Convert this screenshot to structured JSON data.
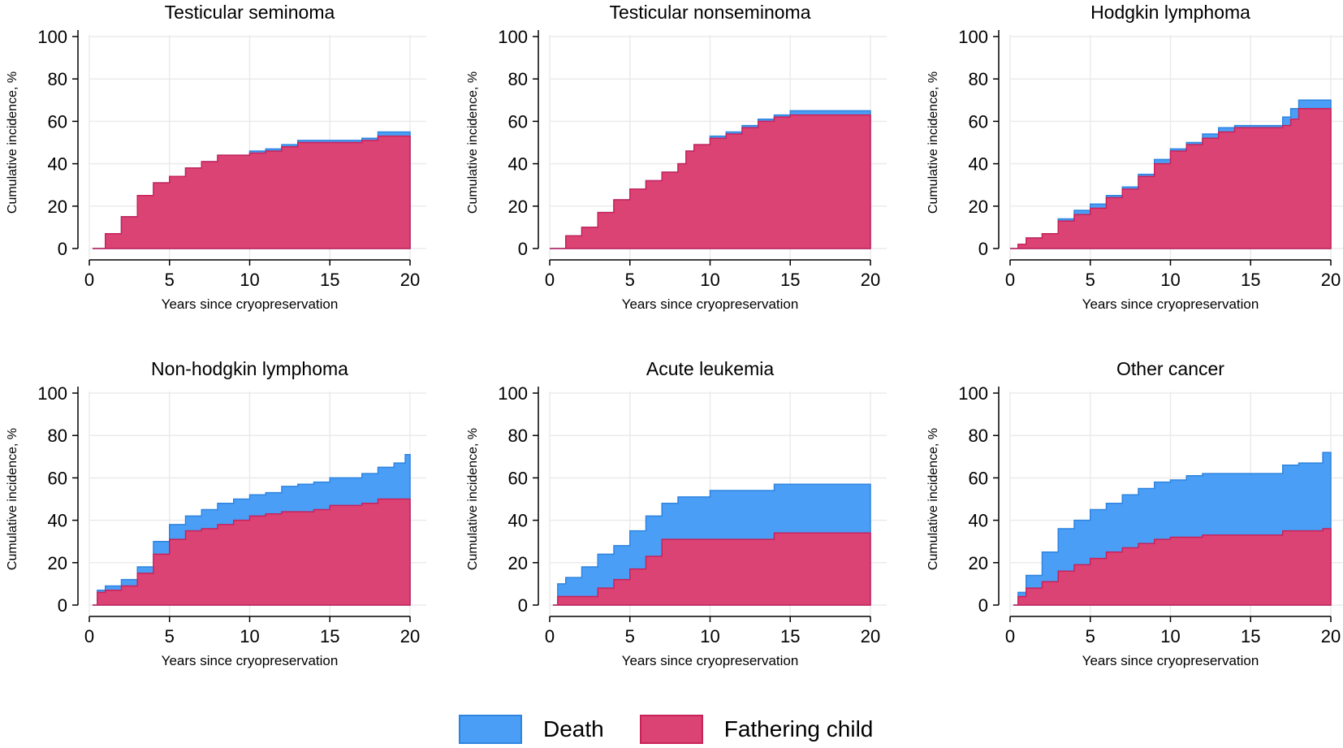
{
  "colors": {
    "death_fill": "#4a9ef5",
    "death_edge": "#2e84e0",
    "father_fill": "#dc4375",
    "father_edge": "#c8225a",
    "grid": "#ebebeb"
  },
  "legend": {
    "death_label": "Death",
    "father_label": "Fathering child"
  },
  "chart_data": [
    {
      "type": "area",
      "title": "Testicular seminoma",
      "xlabel": "Years since cryopreservation",
      "ylabel": "Cumulative incidence, %",
      "xlim": [
        0,
        20
      ],
      "ylim": [
        0,
        100
      ],
      "xticks": [
        0,
        5,
        10,
        15,
        20
      ],
      "yticks": [
        0,
        20,
        40,
        60,
        80,
        100
      ],
      "series": [
        {
          "name": "Death",
          "x": [
            0.2,
            1,
            2,
            3,
            4,
            5,
            6,
            7,
            8,
            9,
            10,
            11,
            12,
            13,
            15,
            17,
            18,
            20
          ],
          "y": [
            0,
            7,
            15,
            25,
            31,
            34,
            38,
            41,
            44,
            44,
            46,
            47,
            49,
            51,
            51,
            52,
            55,
            55
          ]
        },
        {
          "name": "Fathering child",
          "x": [
            0.2,
            1,
            2,
            3,
            4,
            5,
            6,
            7,
            8,
            9,
            10,
            11,
            12,
            13,
            15,
            17,
            18,
            20
          ],
          "y": [
            0,
            7,
            15,
            25,
            31,
            34,
            38,
            41,
            44,
            44,
            45,
            46,
            48,
            50,
            50,
            51,
            53,
            53
          ]
        }
      ]
    },
    {
      "type": "area",
      "title": "Testicular nonseminoma",
      "xlabel": "Years since cryopreservation",
      "ylabel": "Cumulative incidence, %",
      "xlim": [
        0,
        20
      ],
      "ylim": [
        0,
        100
      ],
      "xticks": [
        0,
        5,
        10,
        15,
        20
      ],
      "yticks": [
        0,
        20,
        40,
        60,
        80,
        100
      ],
      "series": [
        {
          "name": "Death",
          "x": [
            0,
            1,
            2,
            3,
            4,
            5,
            6,
            7,
            8,
            8.5,
            9,
            10,
            11,
            12,
            13,
            14,
            15,
            20
          ],
          "y": [
            0,
            6,
            10,
            17,
            23,
            28,
            32,
            36,
            40,
            46,
            49,
            53,
            55,
            58,
            61,
            63,
            65,
            65
          ]
        },
        {
          "name": "Fathering child",
          "x": [
            0,
            1,
            2,
            3,
            4,
            5,
            6,
            7,
            8,
            8.5,
            9,
            10,
            11,
            12,
            13,
            14,
            15,
            20
          ],
          "y": [
            0,
            6,
            10,
            17,
            23,
            28,
            32,
            36,
            40,
            46,
            49,
            52,
            54,
            57,
            60,
            62,
            63,
            63
          ]
        }
      ]
    },
    {
      "type": "area",
      "title": "Hodgkin lymphoma",
      "xlabel": "Years since cryopreservation",
      "ylabel": "Cumulative incidence, %",
      "xlim": [
        0,
        20
      ],
      "ylim": [
        0,
        100
      ],
      "xticks": [
        0,
        5,
        10,
        15,
        20
      ],
      "yticks": [
        0,
        20,
        40,
        60,
        80,
        100
      ],
      "series": [
        {
          "name": "Death",
          "x": [
            0,
            0.5,
            1,
            2,
            3,
            4,
            5,
            6,
            7,
            8,
            9,
            10,
            11,
            12,
            13,
            14,
            15,
            16,
            17,
            17.5,
            18,
            20
          ],
          "y": [
            0,
            2,
            5,
            7,
            14,
            18,
            21,
            25,
            29,
            35,
            42,
            47,
            50,
            54,
            57,
            58,
            58,
            58,
            62,
            66,
            70,
            70
          ]
        },
        {
          "name": "Fathering child",
          "x": [
            0,
            0.5,
            1,
            2,
            3,
            4,
            5,
            6,
            7,
            8,
            9,
            10,
            11,
            12,
            13,
            14,
            15,
            16,
            17,
            17.5,
            18,
            20
          ],
          "y": [
            0,
            2,
            5,
            7,
            13,
            16,
            19,
            24,
            28,
            34,
            40,
            46,
            49,
            52,
            55,
            57,
            57,
            57,
            58,
            61,
            66,
            66
          ]
        }
      ]
    },
    {
      "type": "area",
      "title": "Non-hodgkin lymphoma",
      "xlabel": "Years since cryopreservation",
      "ylabel": "Cumulative incidence, %",
      "xlim": [
        0,
        20
      ],
      "ylim": [
        0,
        100
      ],
      "xticks": [
        0,
        5,
        10,
        15,
        20
      ],
      "yticks": [
        0,
        20,
        40,
        60,
        80,
        100
      ],
      "series": [
        {
          "name": "Death",
          "x": [
            0.2,
            0.5,
            1,
            2,
            3,
            4,
            5,
            6,
            7,
            8,
            9,
            10,
            11,
            12,
            13,
            14,
            15,
            16,
            17,
            18,
            19,
            19.7,
            20
          ],
          "y": [
            0,
            7,
            9,
            12,
            18,
            30,
            38,
            42,
            45,
            48,
            50,
            52,
            53,
            56,
            57,
            58,
            60,
            60,
            62,
            65,
            67,
            71,
            71
          ]
        },
        {
          "name": "Fathering child",
          "x": [
            0.2,
            0.5,
            1,
            2,
            3,
            4,
            5,
            6,
            7,
            8,
            9,
            10,
            11,
            12,
            13,
            14,
            15,
            16,
            17,
            18,
            19,
            19.7,
            20
          ],
          "y": [
            0,
            6,
            7,
            9,
            15,
            24,
            31,
            35,
            36,
            38,
            40,
            42,
            43,
            44,
            44,
            45,
            47,
            47,
            48,
            50,
            50,
            50,
            50
          ]
        }
      ]
    },
    {
      "type": "area",
      "title": "Acute leukemia",
      "xlabel": "Years since cryopreservation",
      "ylabel": "Cumulative incidence, %",
      "xlim": [
        0,
        20
      ],
      "ylim": [
        0,
        100
      ],
      "xticks": [
        0,
        5,
        10,
        15,
        20
      ],
      "yticks": [
        0,
        20,
        40,
        60,
        80,
        100
      ],
      "series": [
        {
          "name": "Death",
          "x": [
            0.2,
            0.5,
            1,
            2,
            3,
            4,
            5,
            6,
            7,
            8,
            9,
            10,
            11,
            12,
            13,
            14,
            15,
            20
          ],
          "y": [
            0,
            10,
            13,
            18,
            24,
            28,
            35,
            42,
            48,
            51,
            51,
            54,
            54,
            54,
            54,
            57,
            57,
            57
          ]
        },
        {
          "name": "Fathering child",
          "x": [
            0.2,
            0.5,
            1,
            2,
            3,
            4,
            5,
            6,
            7,
            8,
            9,
            10,
            11,
            12,
            13,
            14,
            15,
            20
          ],
          "y": [
            0,
            4,
            4,
            4,
            8,
            12,
            17,
            23,
            31,
            31,
            31,
            31,
            31,
            31,
            31,
            34,
            34,
            34
          ]
        }
      ]
    },
    {
      "type": "area",
      "title": "Other cancer",
      "xlabel": "Years since cryopreservation",
      "ylabel": "Cumulative incidence, %",
      "xlim": [
        0,
        20
      ],
      "ylim": [
        0,
        100
      ],
      "xticks": [
        0,
        5,
        10,
        15,
        20
      ],
      "yticks": [
        0,
        20,
        40,
        60,
        80,
        100
      ],
      "series": [
        {
          "name": "Death",
          "x": [
            0.2,
            0.5,
            1,
            2,
            3,
            4,
            5,
            6,
            7,
            8,
            9,
            10,
            11,
            12,
            13,
            14,
            15,
            16,
            17,
            18,
            19,
            19.5,
            20
          ],
          "y": [
            0,
            6,
            14,
            25,
            36,
            40,
            45,
            48,
            52,
            55,
            58,
            59,
            61,
            62,
            62,
            62,
            62,
            62,
            66,
            67,
            67,
            72,
            72
          ]
        },
        {
          "name": "Fathering child",
          "x": [
            0.2,
            0.5,
            1,
            2,
            3,
            4,
            5,
            6,
            7,
            8,
            9,
            10,
            11,
            12,
            13,
            14,
            15,
            16,
            17,
            18,
            19,
            19.5,
            20
          ],
          "y": [
            0,
            4,
            8,
            11,
            16,
            19,
            22,
            25,
            27,
            29,
            31,
            32,
            32,
            33,
            33,
            33,
            33,
            33,
            35,
            35,
            35,
            36,
            36
          ]
        }
      ]
    }
  ]
}
